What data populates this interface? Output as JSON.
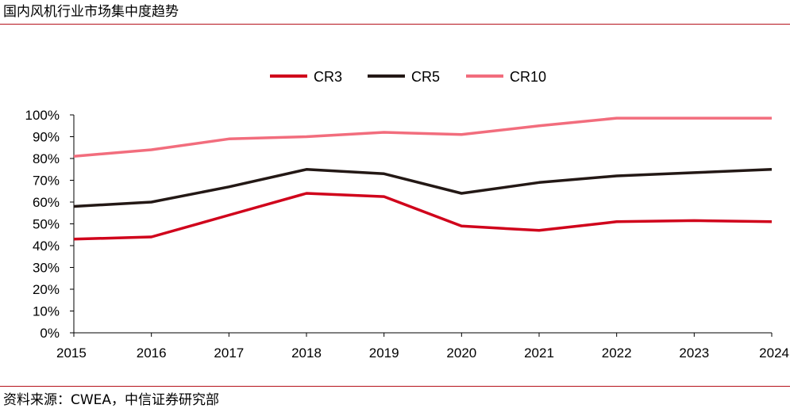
{
  "header": {
    "title": "国内风机行业市场集中度趋势"
  },
  "footer": {
    "source": "资料来源：CWEA，中信证券研究部"
  },
  "chart_data": {
    "type": "line",
    "title": "国内风机行业市场集中度趋势",
    "xlabel": "",
    "ylabel": "",
    "categories": [
      "2015",
      "2016",
      "2017",
      "2018",
      "2019",
      "2020",
      "2021",
      "2022",
      "2023",
      "2024"
    ],
    "ylim": [
      0,
      100
    ],
    "y_ticks": [
      0,
      10,
      20,
      30,
      40,
      50,
      60,
      70,
      80,
      90,
      100
    ],
    "y_tick_labels": [
      "0%",
      "10%",
      "20%",
      "30%",
      "40%",
      "50%",
      "60%",
      "70%",
      "80%",
      "90%",
      "100%"
    ],
    "grid": false,
    "legend": "top-center",
    "series": [
      {
        "name": "CR3",
        "color": "#d0021b",
        "values": [
          43,
          44,
          54,
          64,
          62.5,
          49,
          47,
          51,
          51.5,
          51
        ]
      },
      {
        "name": "CR5",
        "color": "#231815",
        "values": [
          58,
          60,
          67,
          75,
          73,
          64,
          69,
          72,
          73.5,
          75
        ]
      },
      {
        "name": "CR10",
        "color": "#f26d7d",
        "values": [
          81,
          84,
          89,
          90,
          92,
          91,
          95,
          98.5,
          98.5,
          98.5
        ]
      }
    ]
  }
}
